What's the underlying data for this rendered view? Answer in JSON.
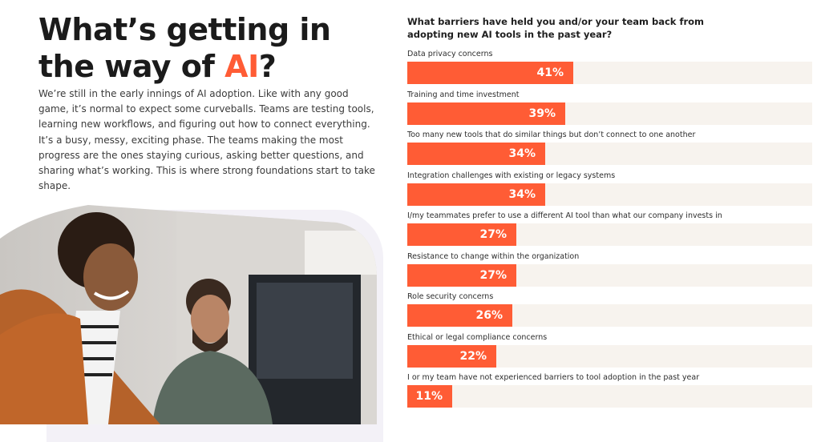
{
  "headline": {
    "line1": "What’s getting in",
    "line2_prefix": "the way of ",
    "line2_accent": "AI",
    "line2_suffix": "?"
  },
  "intro": "We’re still in the early innings of AI adoption. Like with any good game, it’s normal to expect some curveballs. Teams are testing tools, learning new workflows, and figuring out how to connect everything. It’s a busy, messy, exciting phase. The teams making the most progress are the ones staying curious, asking better questions, and sharing what’s working. This is where strong foundations start to take shape.",
  "colors": {
    "accent": "#ff5c35",
    "track": "#f7f3ee"
  },
  "chart_data": {
    "type": "bar",
    "orientation": "horizontal",
    "title": "What barriers have held you and/or your team back from adopting new AI tools in the past year?",
    "xlim": [
      0,
      100
    ],
    "categories": [
      "Data privacy concerns",
      "Training and time investment",
      "Too many new tools that do similar things but don’t connect to one another",
      "Integration challenges with existing or legacy systems",
      "I/my teammates prefer to use a different AI tool than what our company invests in",
      "Resistance to change within the organization",
      "Role security concerns",
      "Ethical or legal compliance concerns",
      "I or my team have not experienced barriers to tool adoption in the past year"
    ],
    "values": [
      41,
      39,
      34,
      34,
      27,
      27,
      26,
      22,
      11
    ],
    "value_labels": [
      "41%",
      "39%",
      "34%",
      "34%",
      "27%",
      "27%",
      "26%",
      "22%",
      "11%"
    ]
  }
}
